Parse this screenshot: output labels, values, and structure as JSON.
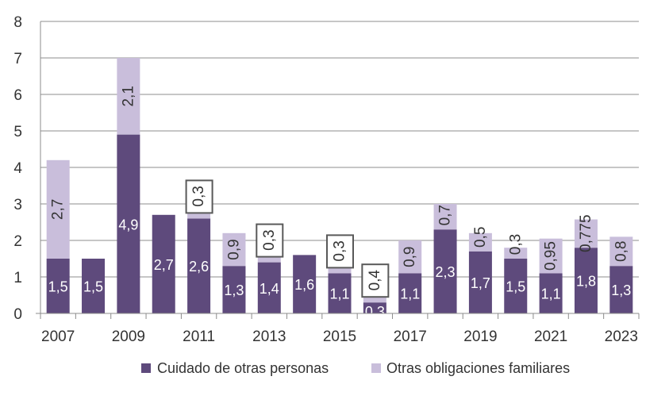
{
  "chart_data": {
    "type": "bar",
    "stacked": true,
    "categories": [
      "2007",
      "2008",
      "2009",
      "2010",
      "2011",
      "2012",
      "2013",
      "2014",
      "2015",
      "2016",
      "2017",
      "2018",
      "2019",
      "2020",
      "2021",
      "2022",
      "2023"
    ],
    "x_tick_labels": [
      "2007",
      "2009",
      "2011",
      "2013",
      "2015",
      "2017",
      "2019",
      "2021",
      "2023"
    ],
    "series": [
      {
        "name": "Cuidado de otras personas",
        "color": "#5e4a7c",
        "values": [
          1.5,
          1.5,
          4.9,
          2.7,
          2.6,
          1.3,
          1.4,
          1.6,
          1.1,
          0.3,
          1.1,
          2.3,
          1.7,
          1.5,
          1.1,
          1.8,
          1.3
        ],
        "labels": [
          "1,5",
          "1,5",
          "4,9",
          "2,7",
          "2,6",
          "1,3",
          "1,4",
          "1,6",
          "1,1",
          "0,3",
          "1,1",
          "2,3",
          "1,7",
          "1,5",
          "1,1",
          "1,8",
          "1,3"
        ]
      },
      {
        "name": "Otras obligaciones familiares",
        "color": "#c9bedb",
        "values": [
          2.7,
          0,
          2.1,
          0,
          0.3,
          0.9,
          0.3,
          0,
          0.3,
          0.4,
          0.9,
          0.7,
          0.5,
          0.3,
          0.95,
          0.775,
          0.8
        ],
        "labels": [
          "2,7",
          "",
          "2,1",
          "",
          "0,3",
          "0,9",
          "0,3",
          "",
          "0,3",
          "0,4",
          "0,9",
          "0,7",
          "0,5",
          "0,3",
          "0,95",
          "0,775",
          "0,8"
        ],
        "boxed": [
          false,
          false,
          false,
          false,
          true,
          false,
          true,
          false,
          true,
          true,
          false,
          false,
          false,
          false,
          false,
          false,
          false
        ]
      }
    ],
    "ylim": [
      0,
      8
    ],
    "y_ticks": [
      0,
      1,
      2,
      3,
      4,
      5,
      6,
      7,
      8
    ],
    "grid": true,
    "legend": "bottom",
    "title": "",
    "xlabel": "",
    "ylabel": ""
  }
}
